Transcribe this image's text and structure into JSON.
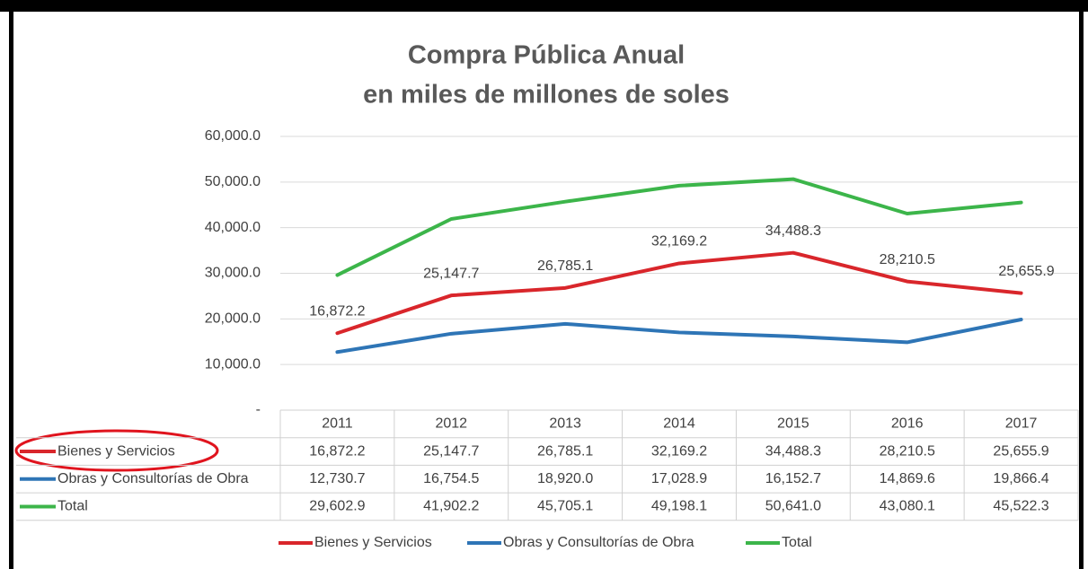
{
  "chart_data": {
    "type": "line",
    "title": [
      "Compra Pública Anual",
      "en miles de millones de soles"
    ],
    "categories": [
      "2011",
      "2012",
      "2013",
      "2014",
      "2015",
      "2016",
      "2017"
    ],
    "series": [
      {
        "name": "Bienes y Servicios",
        "color": "#d9262b",
        "values": [
          16872.2,
          25147.7,
          26785.1,
          32169.2,
          34488.3,
          28210.5,
          25655.9
        ],
        "value_labels": [
          "16,872.2",
          "25,147.7",
          "26,785.1",
          "32,169.2",
          "34,488.3",
          "28,210.5",
          "25,655.9"
        ]
      },
      {
        "name": "Obras y Consultorías de Obra",
        "color": "#2e75b6",
        "values": [
          12730.7,
          16754.5,
          18920.0,
          17028.9,
          16152.7,
          14869.6,
          19866.4
        ],
        "value_labels": [
          "12,730.7",
          "16,754.5",
          "18,920.0",
          "17,028.9",
          "16,152.7",
          "14,869.6",
          "19,866.4"
        ]
      },
      {
        "name": "Total",
        "color": "#3cb54a",
        "values": [
          29602.9,
          41902.2,
          45705.1,
          49198.1,
          50641.0,
          43080.1,
          45522.3
        ],
        "value_labels": [
          "29,602.9",
          "41,902.2",
          "45,705.1",
          "49,198.1",
          "50,641.0",
          "43,080.1",
          "45,522.3"
        ]
      }
    ],
    "ylim": [
      0,
      60000
    ],
    "yticks": [
      {
        "value": 0,
        "label": "-"
      },
      {
        "value": 10000,
        "label": "10,000.0"
      },
      {
        "value": 20000,
        "label": "20,000.0"
      },
      {
        "value": 30000,
        "label": "30,000.0"
      },
      {
        "value": 40000,
        "label": "40,000.0"
      },
      {
        "value": 50000,
        "label": "50,000.0"
      },
      {
        "value": 60000,
        "label": "60,000.0"
      }
    ],
    "grid": true,
    "legend": "bottom",
    "data_table": true
  }
}
